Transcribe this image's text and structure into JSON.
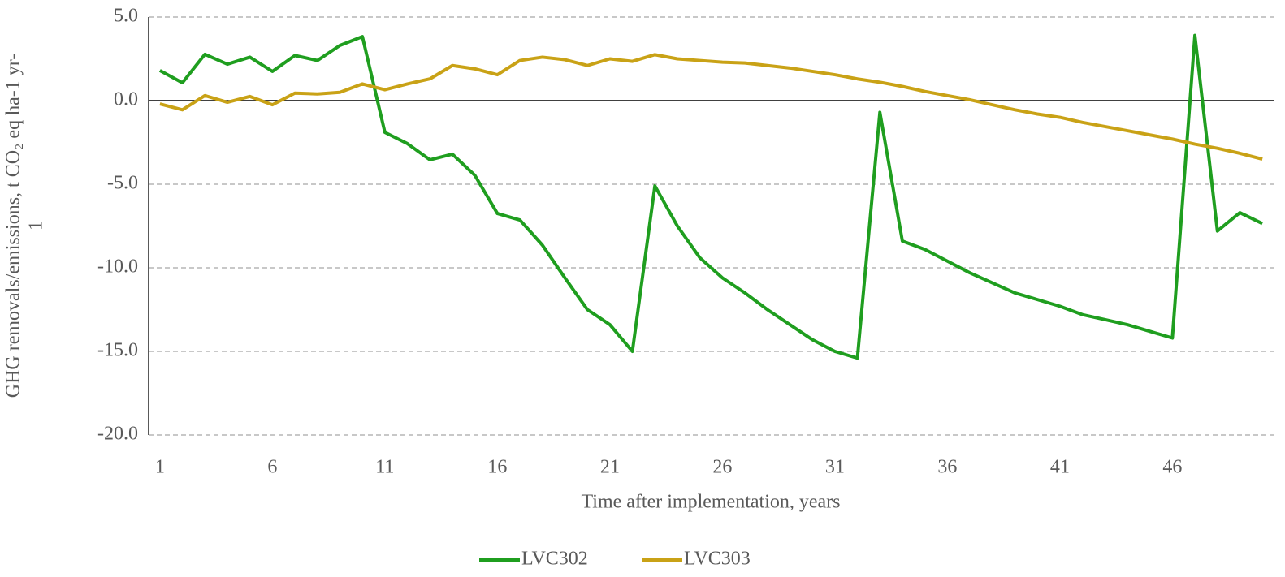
{
  "chart_data": {
    "type": "line",
    "x_label": "Time after implementation, years",
    "y_label": [
      "GHG removals/emissions, t CO₂ eq ha-1 yr-",
      "1"
    ],
    "categories": [
      1,
      null,
      null,
      null,
      null,
      6,
      null,
      null,
      null,
      null,
      11,
      null,
      null,
      null,
      null,
      16,
      null,
      null,
      null,
      null,
      21,
      null,
      null,
      null,
      null,
      26,
      null,
      null,
      null,
      null,
      31,
      null,
      null,
      null,
      null,
      36,
      null,
      null,
      null,
      null,
      41,
      null,
      null,
      null,
      null,
      46,
      null,
      null,
      null,
      null
    ],
    "series": [
      {
        "name": "LVC302",
        "color": "#1f9e1f",
        "values": [
          1.8,
          1.07,
          2.77,
          2.18,
          2.6,
          1.75,
          2.7,
          2.4,
          3.3,
          3.83,
          -1.9,
          -2.57,
          -3.54,
          -3.2,
          -4.47,
          -6.75,
          -7.14,
          -8.64,
          -10.6,
          -12.5,
          -13.4,
          -15.0,
          -5.1,
          -7.5,
          -9.4,
          -10.6,
          -11.5,
          -12.5,
          -13.4,
          -14.3,
          -15.0,
          -15.4,
          -0.7,
          -8.4,
          -8.9,
          -9.6,
          -10.3,
          -10.9,
          -11.5,
          -11.9,
          -12.3,
          -12.8,
          -13.1,
          -13.4,
          -13.8,
          -14.2,
          3.9,
          -7.8,
          -6.7,
          -7.35
        ]
      },
      {
        "name": "LVC303",
        "color": "#c9a216",
        "values": [
          -0.2,
          -0.55,
          0.3,
          -0.1,
          0.25,
          -0.25,
          0.45,
          0.4,
          0.5,
          1.0,
          0.65,
          1.0,
          1.3,
          2.1,
          1.9,
          1.55,
          2.4,
          2.6,
          2.45,
          2.1,
          2.5,
          2.35,
          2.75,
          2.5,
          2.4,
          2.3,
          2.25,
          2.1,
          1.95,
          1.75,
          1.55,
          1.3,
          1.1,
          0.85,
          0.55,
          0.3,
          0.05,
          -0.25,
          -0.55,
          -0.8,
          -1.0,
          -1.3,
          -1.55,
          -1.8,
          -2.05,
          -2.3,
          -2.6,
          -2.85,
          -3.15,
          -3.5
        ]
      }
    ],
    "ylim": [
      -20,
      5
    ],
    "yticks": [
      {
        "value": -20,
        "label": "-20.0"
      },
      {
        "value": -15,
        "label": "-15.0"
      },
      {
        "value": -10,
        "label": "-10.0"
      },
      {
        "value": -5,
        "label": "-5.0"
      },
      {
        "value": 0,
        "label": "0.0"
      },
      {
        "value": 5,
        "label": "5.0"
      }
    ],
    "grid": true,
    "legend": "bottom"
  }
}
